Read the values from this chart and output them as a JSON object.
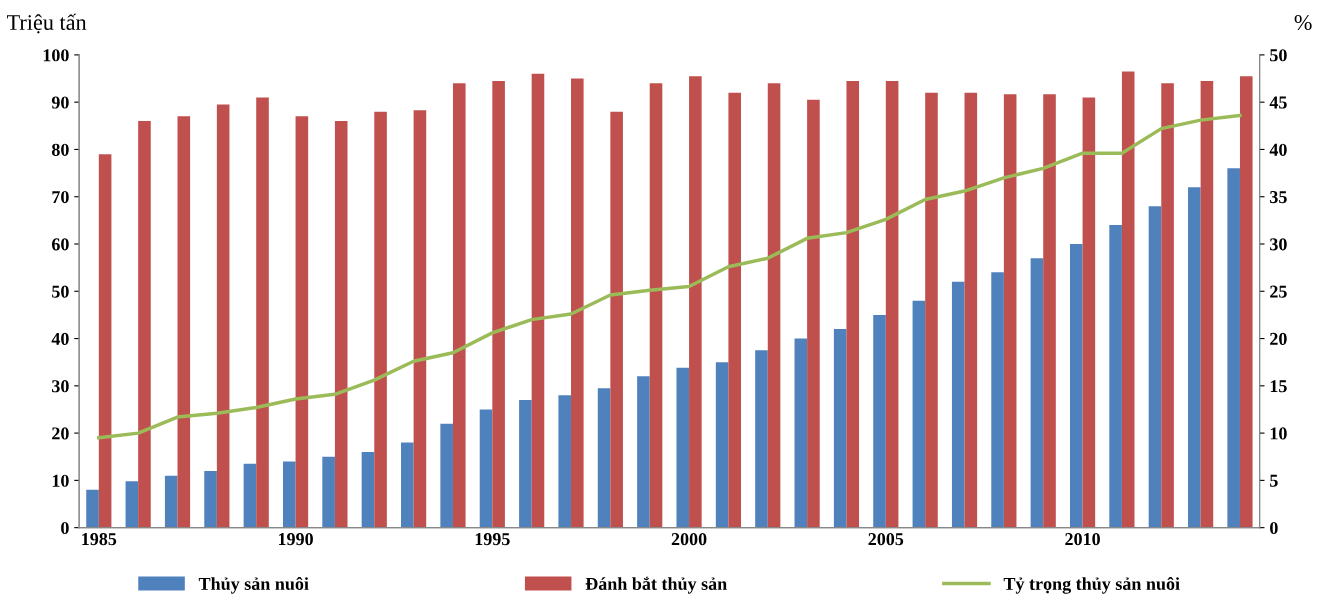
{
  "chart_data": {
    "type": "bar",
    "ylabel": "Triệu tấn",
    "y2label": "%",
    "categories": [
      "1985",
      null,
      null,
      null,
      null,
      "1990",
      null,
      null,
      null,
      null,
      "1995",
      null,
      null,
      null,
      null,
      "2000",
      null,
      null,
      null,
      null,
      "2005",
      null,
      null,
      null,
      null,
      "2010",
      null,
      null,
      null,
      null
    ],
    "series": [
      {
        "name": "Thủy sản nuôi",
        "color": "#4f81bd",
        "values": [
          8,
          9.8,
          11,
          12,
          13.5,
          14,
          15,
          16,
          18,
          22,
          25,
          27,
          28,
          29.5,
          32,
          33.8,
          35,
          37.5,
          40,
          42,
          45,
          48,
          52,
          54,
          57,
          60,
          64,
          68,
          72,
          76
        ]
      },
      {
        "name": "Đánh bắt thủy sản",
        "color": "#c0504d",
        "values": [
          79,
          86,
          87,
          89.5,
          91,
          87,
          86,
          88,
          88.3,
          94,
          94.5,
          96,
          95,
          88,
          94,
          95.5,
          92,
          94,
          90.5,
          94.5,
          94.5,
          92,
          92,
          91.7,
          91.7,
          91,
          96.5,
          94,
          94.5,
          95.5
        ]
      },
      {
        "name": "Tỷ trọng thủy sản nuôi",
        "type": "line",
        "axis": "y2",
        "color": "#9bbb59",
        "values": [
          9.5,
          10,
          11.7,
          12.1,
          12.7,
          13.6,
          14.1,
          15.6,
          17.6,
          18.5,
          20.6,
          22,
          22.6,
          24.6,
          25.1,
          25.5,
          27.6,
          28.5,
          30.6,
          31.2,
          32.6,
          34.7,
          35.6,
          37,
          38,
          39.6,
          39.6,
          42.2,
          43.1,
          43.6
        ]
      }
    ],
    "ylim": [
      0,
      100
    ],
    "yticks": [
      0,
      10,
      20,
      30,
      40,
      50,
      60,
      70,
      80,
      90,
      100
    ],
    "y2lim": [
      0,
      50
    ],
    "y2ticks": [
      0,
      5,
      10,
      15,
      20,
      25,
      30,
      35,
      40,
      45,
      50
    ],
    "grid": false,
    "legend": "bottom",
    "marker": "none",
    "line_style": "solid"
  }
}
